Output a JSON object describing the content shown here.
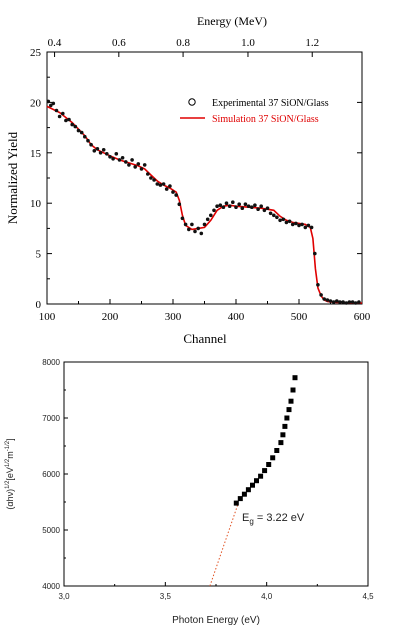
{
  "chart_data": [
    {
      "type": "scatter",
      "xlabel": "Channel",
      "ylabel": "Normalized Yield",
      "top_axis_label": "Energy (MeV)",
      "xlim": [
        100,
        600
      ],
      "ylim": [
        0,
        25
      ],
      "xticks": [
        "100",
        "200",
        "300",
        "400",
        "500",
        "600"
      ],
      "yticks": [
        "0",
        "5",
        "10",
        "15",
        "20",
        "25"
      ],
      "top_ticks": [
        "0.4",
        "0.6",
        "0.8",
        "1.0",
        "1.2"
      ],
      "top_tick_channels": [
        112,
        214,
        316,
        419,
        521
      ],
      "legend_position": "upper-right",
      "colors": {
        "experimental": "#000000",
        "simulation": "#e00000"
      },
      "series": [
        {
          "name": "Experimental 37 SiON/Glass",
          "marker": "circle",
          "x": [
            102,
            106,
            110,
            115,
            120,
            125,
            130,
            135,
            140,
            145,
            150,
            155,
            160,
            165,
            170,
            175,
            180,
            185,
            190,
            195,
            200,
            205,
            210,
            215,
            220,
            225,
            230,
            235,
            240,
            245,
            250,
            255,
            260,
            265,
            270,
            275,
            280,
            285,
            290,
            295,
            300,
            305,
            310,
            315,
            320,
            325,
            330,
            335,
            340,
            345,
            350,
            355,
            360,
            365,
            370,
            375,
            380,
            385,
            390,
            395,
            400,
            405,
            410,
            415,
            420,
            425,
            430,
            435,
            440,
            445,
            450,
            455,
            460,
            465,
            470,
            475,
            480,
            485,
            490,
            495,
            500,
            505,
            510,
            515,
            520,
            525,
            530,
            535,
            540,
            545,
            550,
            555,
            560,
            565,
            570,
            575,
            580,
            585,
            590,
            595
          ],
          "y": [
            20.1,
            19.7,
            19.9,
            19.2,
            18.6,
            18.9,
            18.2,
            18.3,
            17.8,
            17.6,
            17.2,
            17.0,
            16.6,
            16.2,
            15.8,
            15.2,
            15.4,
            15.0,
            15.3,
            14.9,
            14.6,
            14.4,
            14.9,
            14.3,
            14.5,
            14.1,
            13.8,
            14.3,
            13.6,
            13.9,
            13.4,
            13.8,
            12.9,
            12.5,
            12.3,
            11.9,
            11.8,
            11.9,
            11.4,
            11.7,
            11.1,
            10.8,
            9.9,
            8.5,
            7.9,
            7.4,
            7.9,
            7.2,
            7.5,
            7.0,
            7.9,
            8.4,
            8.8,
            9.3,
            9.7,
            9.8,
            9.6,
            10.0,
            9.7,
            10.1,
            9.6,
            9.9,
            9.5,
            9.9,
            9.7,
            9.6,
            9.8,
            9.4,
            9.7,
            9.3,
            9.5,
            9.0,
            8.8,
            8.6,
            8.3,
            8.4,
            8.1,
            8.2,
            7.9,
            8.0,
            7.8,
            7.9,
            7.6,
            7.8,
            7.6,
            5.0,
            1.9,
            0.9,
            0.5,
            0.4,
            0.3,
            0.2,
            0.3,
            0.2,
            0.2,
            0.1,
            0.2,
            0.2,
            0.1,
            0.2
          ]
        },
        {
          "name": "Simulation 37 SiON/Glass",
          "marker": "line",
          "x": [
            100,
            120,
            140,
            160,
            170,
            180,
            190,
            200,
            215,
            230,
            245,
            255,
            265,
            275,
            285,
            295,
            305,
            310,
            315,
            320,
            330,
            340,
            350,
            360,
            370,
            380,
            390,
            400,
            420,
            440,
            460,
            470,
            480,
            490,
            500,
            510,
            518,
            522,
            526,
            530,
            535,
            540,
            545,
            550,
            560,
            570,
            580,
            590,
            600
          ],
          "y": [
            19.6,
            19.0,
            18.0,
            16.7,
            15.8,
            15.3,
            15.0,
            14.7,
            14.3,
            14.0,
            13.7,
            13.4,
            12.8,
            12.2,
            11.8,
            11.5,
            11.1,
            10.3,
            8.8,
            7.8,
            7.4,
            7.5,
            7.6,
            8.3,
            9.3,
            9.7,
            9.8,
            9.7,
            9.6,
            9.5,
            9.3,
            8.7,
            8.3,
            8.1,
            8.0,
            7.9,
            7.6,
            6.5,
            3.5,
            1.6,
            0.8,
            0.4,
            0.25,
            0.2,
            0.15,
            0.15,
            0.1,
            0.1,
            0.1
          ]
        }
      ]
    },
    {
      "type": "scatter",
      "xlabel": "Photon Energy (eV)",
      "ylabel": "(αhν)^1/2 [eV^1/2 m^-1/2]",
      "xlim": [
        3.0,
        4.5
      ],
      "ylim": [
        4000,
        8000
      ],
      "xticks": [
        "3,0",
        "3,5",
        "4,0",
        "4,5"
      ],
      "yticks": [
        "4000",
        "5000",
        "6000",
        "7000",
        "8000"
      ],
      "annotation": {
        "base": "E",
        "sub": "g",
        "text": " = 3.22 eV"
      },
      "colors": {
        "points": "#000000",
        "fit": "#e05020"
      },
      "series": [
        {
          "name": "data",
          "marker": "square",
          "x": [
            3.85,
            3.87,
            3.89,
            3.91,
            3.93,
            3.95,
            3.97,
            3.99,
            4.01,
            4.03,
            4.05,
            4.07,
            4.08,
            4.09,
            4.1,
            4.11,
            4.12,
            4.13,
            4.14
          ],
          "y": [
            5480,
            5560,
            5640,
            5720,
            5800,
            5880,
            5960,
            6060,
            6170,
            6290,
            6420,
            6560,
            6700,
            6850,
            7000,
            7150,
            7300,
            7500,
            7720
          ]
        },
        {
          "name": "fit",
          "marker": "dotted-line",
          "x": [
            3.72,
            3.86
          ],
          "y": [
            4000,
            5480
          ]
        }
      ]
    }
  ]
}
